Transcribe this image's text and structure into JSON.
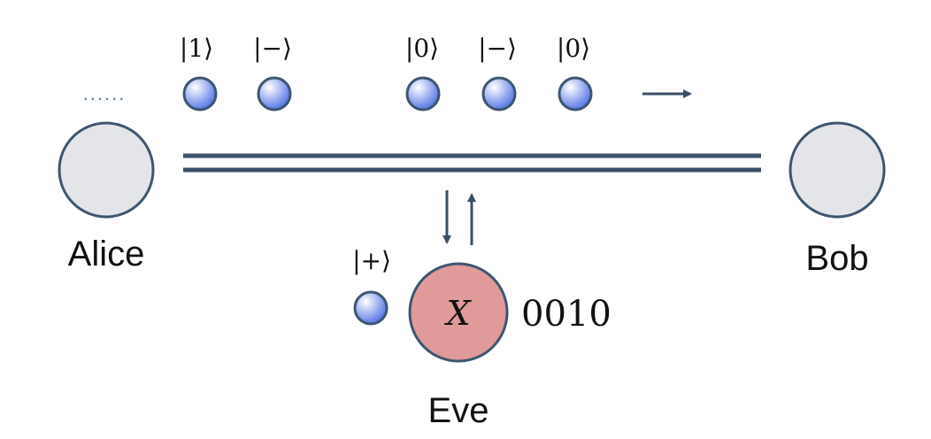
{
  "nodes": {
    "alice": {
      "label": "Alice"
    },
    "bob": {
      "label": "Bob"
    },
    "eve": {
      "label": "Eve",
      "operator": "X",
      "measured_bits": "0010"
    }
  },
  "qubits_in_transit": [
    {
      "state": "|1⟩"
    },
    {
      "state": "|−⟩"
    },
    {
      "state": "|0⟩"
    },
    {
      "state": "|−⟩"
    },
    {
      "state": "|0⟩"
    }
  ],
  "eve_qubit": {
    "state": "|+⟩"
  },
  "ellipsis": "......",
  "colors": {
    "node_fill": "#e3e5e8",
    "node_stroke": "#3d5670",
    "eve_fill": "#df9a99",
    "qubit_fill_light": "#ffffff",
    "qubit_fill_dark": "#4d6ee3",
    "channel": "#3a5068",
    "dots": "#4d7ea8"
  },
  "icons": {
    "direction_arrow": "arrow-right-icon",
    "intercept_arrows": "arrow-down-up-icon"
  }
}
